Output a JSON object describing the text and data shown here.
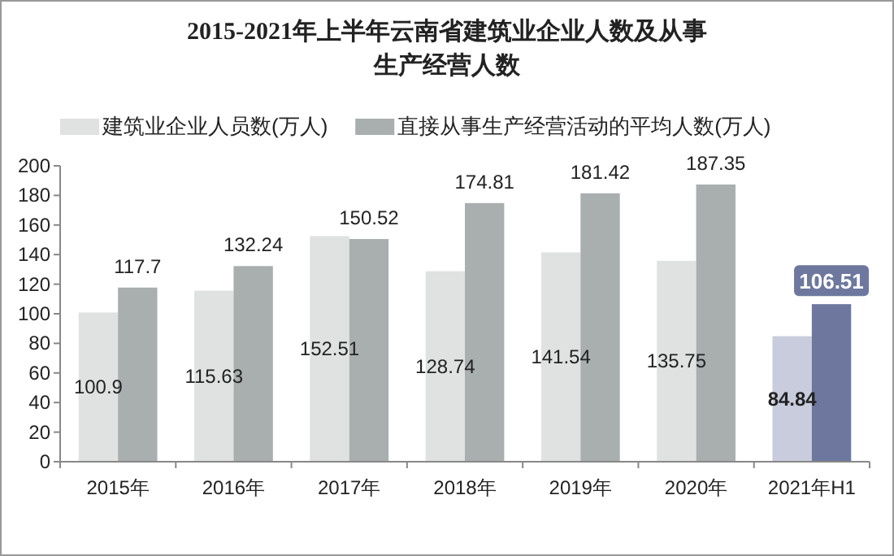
{
  "chart_data": {
    "type": "bar",
    "title": "2015-2021年上半年云南省建筑业企业人数及从事生产经营人数",
    "categories": [
      "2015年",
      "2016年",
      "2017年",
      "2018年",
      "2019年",
      "2020年",
      "2021年H1"
    ],
    "series": [
      {
        "name": "建筑业企业人员数(万人)",
        "color": "#e0e2e2",
        "colors": [
          "#e0e2e2",
          "#e0e2e2",
          "#e0e2e2",
          "#e0e2e2",
          "#e0e2e2",
          "#e0e2e2",
          "#c8ccdc"
        ],
        "values": [
          100.9,
          115.63,
          152.51,
          128.74,
          141.54,
          135.75,
          84.84
        ]
      },
      {
        "name": "直接从事生产经营活动的平均人数(万人)",
        "color": "#a9aeae",
        "colors": [
          "#a9aeae",
          "#a9aeae",
          "#a9aeae",
          "#a9aeae",
          "#a9aeae",
          "#a9aeae",
          "#6e789e"
        ],
        "values": [
          117.7,
          132.24,
          150.52,
          174.81,
          181.42,
          187.35,
          106.51
        ]
      }
    ],
    "ylim": [
      0,
      200
    ],
    "yticks": [
      0,
      20,
      40,
      60,
      80,
      100,
      120,
      140,
      160,
      180,
      200
    ],
    "data_labels": true,
    "legend": "top left",
    "grid": false
  }
}
